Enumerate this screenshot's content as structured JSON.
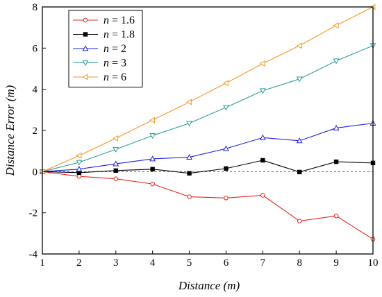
{
  "chart_data": {
    "type": "line",
    "xlabel": "Distance (m)",
    "ylabel": "Distance Error (m)",
    "xlim": [
      1,
      10
    ],
    "ylim": [
      -4,
      8
    ],
    "x_ticks": [
      1,
      2,
      3,
      4,
      5,
      6,
      7,
      8,
      9,
      10
    ],
    "y_ticks": [
      -4,
      -2,
      0,
      2,
      4,
      6,
      8
    ],
    "grid": false,
    "zero_reference_line": "dashed",
    "legend_position": "top-left",
    "x": [
      1,
      2,
      3,
      4,
      5,
      6,
      7,
      8,
      9,
      10
    ],
    "series": [
      {
        "name": "n = 1.6",
        "legend_var": "n",
        "legend_val": "= 1.6",
        "color": "#e8231f",
        "marker": "open-circle",
        "values": [
          0,
          -0.23,
          -0.35,
          -0.6,
          -1.22,
          -1.28,
          -1.15,
          -2.4,
          -2.15,
          -3.28
        ]
      },
      {
        "name": "n = 1.8",
        "legend_var": "n",
        "legend_val": "= 1.8",
        "color": "#000000",
        "marker": "filled-square",
        "values": [
          0,
          -0.05,
          0.05,
          0.12,
          -0.08,
          0.15,
          0.55,
          -0.02,
          0.48,
          0.42
        ]
      },
      {
        "name": "n = 2",
        "legend_var": "n",
        "legend_val": "= 2",
        "color": "#1f1fd8",
        "marker": "open-triangle-up",
        "values": [
          0,
          0.12,
          0.38,
          0.62,
          0.7,
          1.12,
          1.65,
          1.5,
          2.12,
          2.35
        ]
      },
      {
        "name": "n = 3",
        "legend_var": "n",
        "legend_val": "= 3",
        "color": "#2a9c9c",
        "marker": "open-triangle-down",
        "values": [
          0,
          0.45,
          1.08,
          1.75,
          2.35,
          3.12,
          3.93,
          4.5,
          5.38,
          6.12
        ]
      },
      {
        "name": "n = 6",
        "legend_var": "n",
        "legend_val": "= 6",
        "color": "#f5961f",
        "marker": "open-triangle-left",
        "values": [
          0,
          0.78,
          1.62,
          2.5,
          3.38,
          4.3,
          5.25,
          6.12,
          7.1,
          8.0
        ]
      }
    ]
  }
}
